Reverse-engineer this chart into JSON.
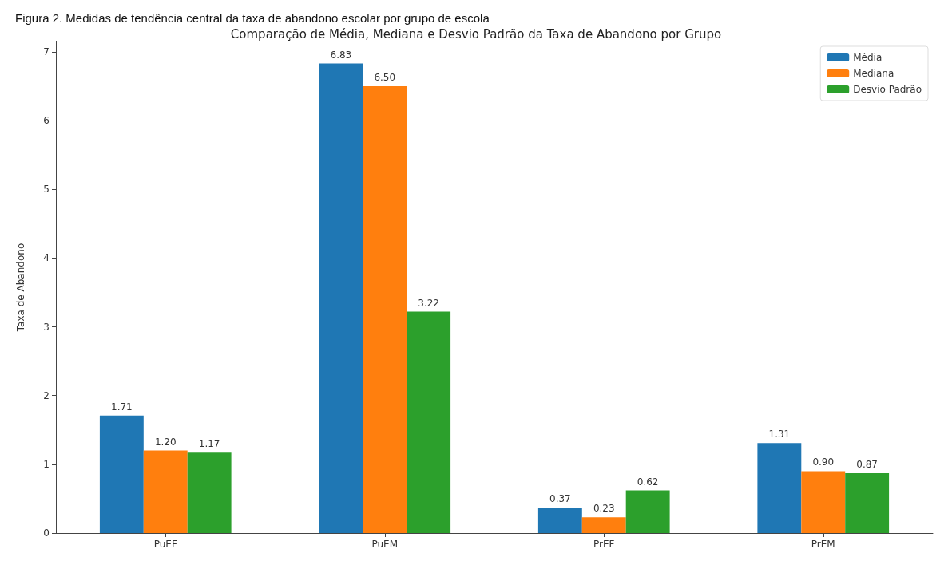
{
  "chart_data": {
    "type": "bar",
    "title": "Comparação de Média, Mediana e Desvio Padrão da Taxa de Abandono por Grupo",
    "annotations": [
      "Figura 2. Medidas de tendência central da taxa de abandono escolar por grupo de escola"
    ],
    "ylabel": "Taxa de Abandono",
    "categories": [
      "PuEF",
      "PuEM",
      "PrEF",
      "PrEM"
    ],
    "series": [
      {
        "name": "Média",
        "color": "#1f77b4",
        "values": [
          1.71,
          6.83,
          0.37,
          1.31
        ]
      },
      {
        "name": "Mediana",
        "color": "#ff7f0e",
        "values": [
          1.2,
          6.5,
          0.23,
          0.9
        ]
      },
      {
        "name": "Desvio Padrão",
        "color": "#2ca02c",
        "values": [
          1.17,
          3.22,
          0.62,
          0.87
        ]
      }
    ],
    "value_labels": [
      [
        "1.71",
        "6.83",
        "0.37",
        "1.31"
      ],
      [
        "1.20",
        "6.50",
        "0.23",
        "0.90"
      ],
      [
        "1.17",
        "3.22",
        "0.62",
        "0.87"
      ]
    ],
    "ylim": [
      0,
      7.15
    ],
    "yticks": [
      0,
      1,
      2,
      3,
      4,
      5,
      6,
      7
    ],
    "grid": false,
    "legend": "top right"
  }
}
